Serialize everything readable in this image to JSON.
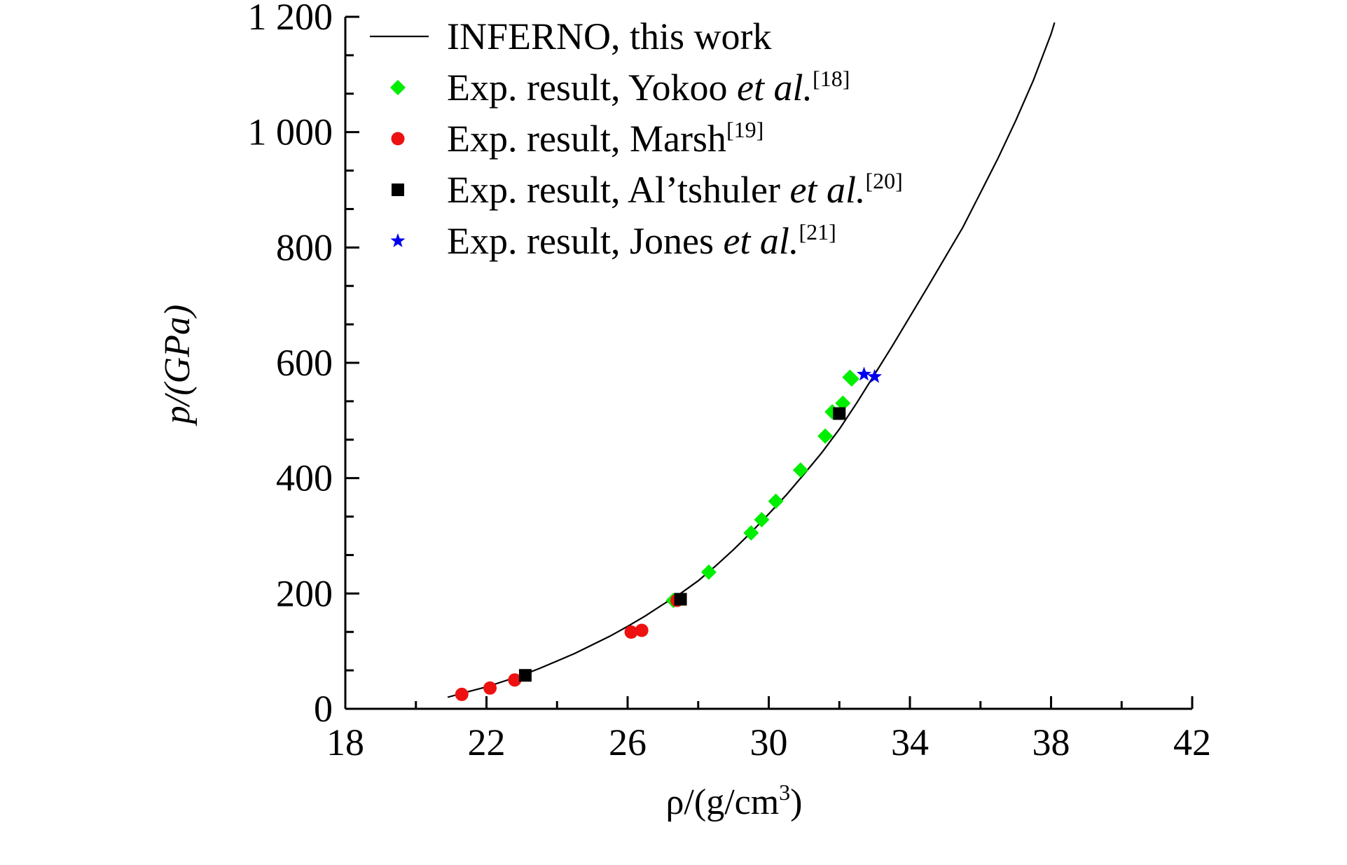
{
  "chart_data": {
    "type": "scatter",
    "xlabel": {
      "prefix": "ρ/(g/cm",
      "sup": "3",
      "suffix": ")"
    },
    "ylabel": "p/(GPa)",
    "xlim": [
      18,
      42
    ],
    "ylim": [
      0,
      1200
    ],
    "x_ticks": [
      18,
      22,
      26,
      30,
      34,
      38,
      42
    ],
    "x_tick_labels": [
      "18",
      "22",
      "26",
      "30",
      "34",
      "38",
      "42"
    ],
    "y_ticks": [
      0,
      200,
      400,
      600,
      800,
      1000,
      1200
    ],
    "y_tick_labels": [
      "0",
      "200",
      "400",
      "600",
      "800",
      "1 000",
      "1 200"
    ],
    "legend_position": "top-left",
    "series": [
      {
        "name": "INFERNO, this work",
        "kind": "line",
        "color": "#000000",
        "x": [
          20.9,
          21.5,
          22.0,
          22.5,
          23.0,
          23.5,
          24.0,
          24.5,
          25.0,
          25.5,
          26.0,
          26.5,
          27.0,
          27.5,
          28.0,
          28.5,
          29.0,
          29.5,
          30.0,
          30.5,
          31.0,
          31.5,
          32.0,
          32.5,
          33.0,
          33.5,
          34.0,
          34.5,
          35.0,
          35.5,
          36.0,
          36.5,
          37.0,
          37.5,
          38.0,
          38.1
        ],
        "y": [
          20,
          30,
          38,
          48,
          58,
          70,
          83,
          96,
          111,
          126,
          143,
          161,
          181,
          200,
          222,
          248,
          276,
          306,
          338,
          371,
          407,
          444,
          485,
          531,
          580,
          629,
          680,
          731,
          783,
          835,
          895,
          955,
          1020,
          1090,
          1170,
          1190
        ]
      },
      {
        "name": "Exp. result, Yokoo ",
        "name_italic": "et al.",
        "ref": "[18]",
        "kind": "diamond",
        "color": "#00ee00",
        "x": [
          27.3,
          28.3,
          29.5,
          29.8,
          30.2,
          30.9,
          31.6,
          31.8,
          32.1,
          32.3,
          32.35
        ],
        "y": [
          188,
          237,
          305,
          328,
          360,
          414,
          473,
          515,
          530,
          575,
          572
        ]
      },
      {
        "name": "Exp. result, Marsh",
        "name_italic": "",
        "ref": "[19]",
        "kind": "circle",
        "color": "#ee1111",
        "x": [
          21.3,
          22.1,
          22.8,
          26.1,
          26.4,
          27.4
        ],
        "y": [
          25,
          36,
          50,
          133,
          136,
          188
        ]
      },
      {
        "name": "Exp. result, Al’tshuler ",
        "name_italic": "et al.",
        "ref": "[20]",
        "kind": "square",
        "color": "#000000",
        "x": [
          23.1,
          27.5,
          32.0
        ],
        "y": [
          58,
          190,
          512
        ]
      },
      {
        "name": "Exp. result, Jones ",
        "name_italic": "et al.",
        "ref": "[21]",
        "kind": "star",
        "color": "#0000ee",
        "x": [
          32.7,
          33.0
        ],
        "y": [
          580,
          576
        ]
      }
    ]
  }
}
